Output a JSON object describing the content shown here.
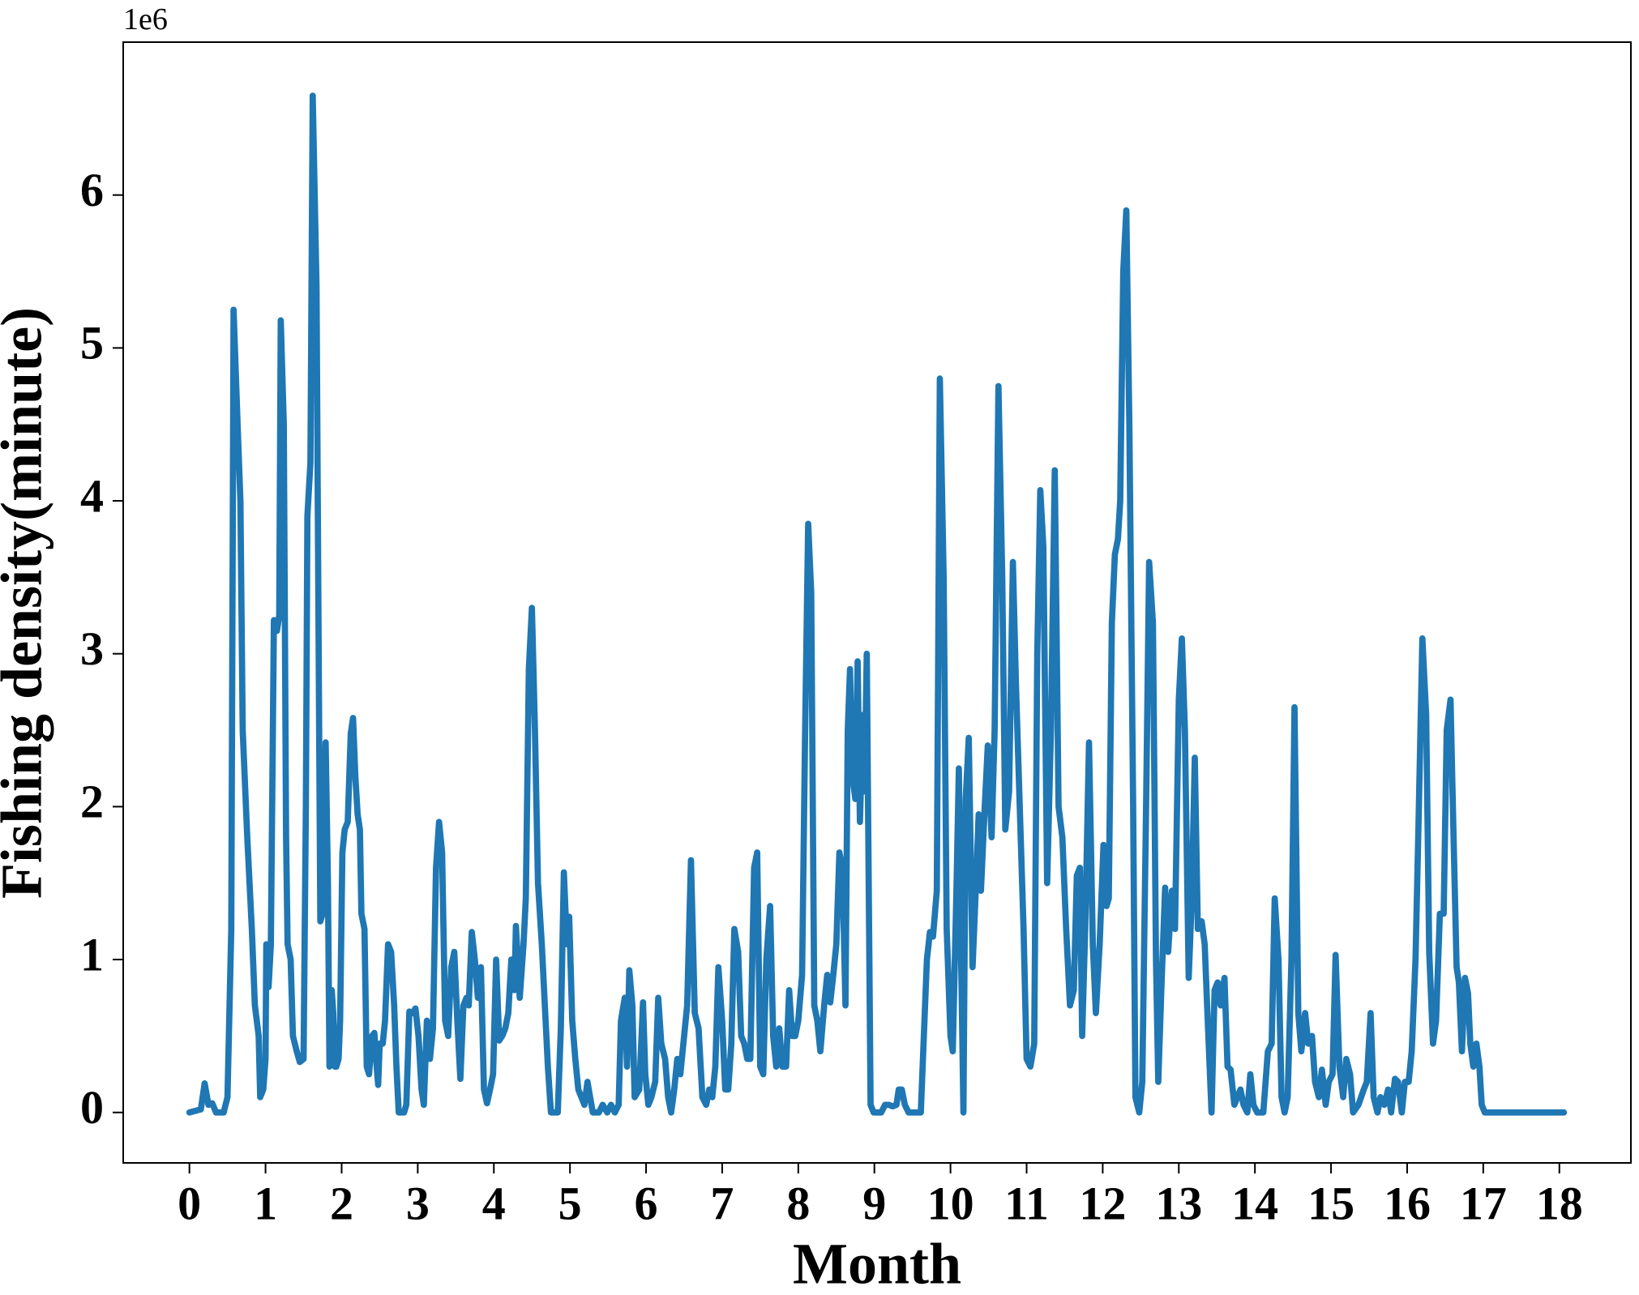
{
  "chart_data": {
    "type": "line",
    "xlabel": "Month",
    "ylabel": "Fishing density(minute)",
    "offset_text": "1e6",
    "xlim": [
      -0.87,
      18.94
    ],
    "ylim": [
      -0.33,
      7.0
    ],
    "xticks": [
      0,
      1,
      2,
      3,
      4,
      5,
      6,
      7,
      8,
      9,
      10,
      11,
      12,
      13,
      14,
      15,
      16,
      17,
      18
    ],
    "yticks": [
      0,
      1,
      2,
      3,
      4,
      5,
      6
    ],
    "line_width": 7.7,
    "x": [
      0,
      0.15,
      0.2,
      0.25,
      0.3,
      0.35,
      0.45,
      0.5,
      0.55,
      0.58,
      0.64,
      0.67,
      0.7,
      0.76,
      0.82,
      0.86,
      0.91,
      0.93,
      0.97,
      1.0,
      1.01,
      1.04,
      1.07,
      1.11,
      1.15,
      1.18,
      1.2,
      1.24,
      1.27,
      1.29,
      1.33,
      1.36,
      1.41,
      1.45,
      1.5,
      1.53,
      1.55,
      1.59,
      1.62,
      1.67,
      1.69,
      1.72,
      1.75,
      1.79,
      1.82,
      1.84,
      1.87,
      1.89,
      1.91,
      1.93,
      1.96,
      1.98,
      2.01,
      2.04,
      2.08,
      2.12,
      2.15,
      2.18,
      2.21,
      2.24,
      2.26,
      2.3,
      2.33,
      2.36,
      2.4,
      2.43,
      2.46,
      2.48,
      2.5,
      2.54,
      2.57,
      2.61,
      2.65,
      2.69,
      2.72,
      2.75,
      2.82,
      2.85,
      2.89,
      2.93,
      2.97,
      3.01,
      3.05,
      3.08,
      3.12,
      3.16,
      3.2,
      3.24,
      3.28,
      3.32,
      3.36,
      3.4,
      3.44,
      3.48,
      3.52,
      3.56,
      3.6,
      3.64,
      3.67,
      3.71,
      3.75,
      3.79,
      3.83,
      3.87,
      3.91,
      3.95,
      3.99,
      4.03,
      4.07,
      4.11,
      4.15,
      4.19,
      4.23,
      4.27,
      4.29,
      4.34,
      4.39,
      4.42,
      4.46,
      4.5,
      4.54,
      4.58,
      4.63,
      4.67,
      4.71,
      4.75,
      4.84,
      4.88,
      4.92,
      4.96,
      4.99,
      5.03,
      5.07,
      5.11,
      5.15,
      5.19,
      5.23,
      5.3,
      5.38,
      5.43,
      5.49,
      5.54,
      5.59,
      5.64,
      5.67,
      5.72,
      5.75,
      5.78,
      5.82,
      5.85,
      5.91,
      5.96,
      5.99,
      6.03,
      6.07,
      6.12,
      6.16,
      6.2,
      6.25,
      6.29,
      6.33,
      6.37,
      6.41,
      6.45,
      6.49,
      6.54,
      6.59,
      6.64,
      6.69,
      6.74,
      6.79,
      6.83,
      6.87,
      6.91,
      6.95,
      7.0,
      7.04,
      7.08,
      7.12,
      7.16,
      7.21,
      7.25,
      7.29,
      7.33,
      7.37,
      7.42,
      7.46,
      7.5,
      7.54,
      7.58,
      7.63,
      7.67,
      7.71,
      7.75,
      7.79,
      7.84,
      7.88,
      7.92,
      7.96,
      8.0,
      8.05,
      8.09,
      8.13,
      8.17,
      8.21,
      8.25,
      8.29,
      8.34,
      8.38,
      8.42,
      8.46,
      8.5,
      8.54,
      8.58,
      8.62,
      8.65,
      8.68,
      8.71,
      8.75,
      8.78,
      8.81,
      8.85,
      8.87,
      8.9,
      8.95,
      8.99,
      9.09,
      9.14,
      9.19,
      9.24,
      9.29,
      9.32,
      9.36,
      9.4,
      9.45,
      9.55,
      9.61,
      9.65,
      9.69,
      9.73,
      9.77,
      9.82,
      9.86,
      9.91,
      9.95,
      10.0,
      10.03,
      10.08,
      10.11,
      10.14,
      10.17,
      10.2,
      10.24,
      10.29,
      10.34,
      10.37,
      10.4,
      10.45,
      10.49,
      10.54,
      10.58,
      10.63,
      10.68,
      10.72,
      10.77,
      10.82,
      10.86,
      10.91,
      10.96,
      11.0,
      11.05,
      11.1,
      11.14,
      11.18,
      11.22,
      11.27,
      11.32,
      11.37,
      11.42,
      11.47,
      11.52,
      11.57,
      11.62,
      11.66,
      11.7,
      11.73,
      11.77,
      11.82,
      11.87,
      11.91,
      11.96,
      12.01,
      12.05,
      12.08,
      12.12,
      12.16,
      12.2,
      12.23,
      12.27,
      12.31,
      12.35,
      12.4,
      12.43,
      12.48,
      12.52,
      12.57,
      12.61,
      12.66,
      12.7,
      12.73,
      12.77,
      12.82,
      12.86,
      12.91,
      12.95,
      13.0,
      13.04,
      13.08,
      13.13,
      13.17,
      13.21,
      13.25,
      13.3,
      13.34,
      13.38,
      13.43,
      13.47,
      13.51,
      13.55,
      13.6,
      13.64,
      13.68,
      13.73,
      13.77,
      13.81,
      13.85,
      13.9,
      13.94,
      13.98,
      14.03,
      14.11,
      14.17,
      14.22,
      14.26,
      14.31,
      14.35,
      14.39,
      14.43,
      14.48,
      14.52,
      14.57,
      14.61,
      14.66,
      14.7,
      14.75,
      14.79,
      14.84,
      14.88,
      14.93,
      14.97,
      15.02,
      15.06,
      15.11,
      15.16,
      15.2,
      15.25,
      15.29,
      15.36,
      15.43,
      15.47,
      15.52,
      15.56,
      15.61,
      15.65,
      15.7,
      15.75,
      15.79,
      15.84,
      15.88,
      15.93,
      15.97,
      16.02,
      16.06,
      16.11,
      16.15,
      16.2,
      16.25,
      16.29,
      16.34,
      16.38,
      16.43,
      16.48,
      16.52,
      16.57,
      16.61,
      16.65,
      16.68,
      16.72,
      16.76,
      16.8,
      16.83,
      16.87,
      16.91,
      16.95,
      16.98,
      17.02,
      17.5,
      18.06
    ],
    "series": [
      {
        "color": "#1f77b4",
        "values": [
          0,
          0.02,
          0.19,
          0.05,
          0.06,
          0,
          0,
          0.1,
          1.2,
          5.25,
          4.4,
          4.0,
          2.5,
          1.8,
          1.2,
          0.7,
          0.5,
          0.1,
          0.15,
          0.35,
          1.1,
          0.82,
          1.1,
          3.22,
          3.15,
          3.25,
          5.18,
          4.5,
          1.8,
          1.1,
          1.0,
          0.5,
          0.4,
          0.33,
          0.35,
          2.0,
          3.9,
          4.25,
          6.65,
          5.4,
          3.7,
          1.25,
          1.3,
          2.42,
          1.5,
          0.3,
          0.8,
          0.65,
          0.3,
          0.3,
          0.35,
          0.6,
          1.7,
          1.85,
          1.9,
          2.48,
          2.58,
          2.2,
          1.95,
          1.85,
          1.3,
          1.2,
          0.3,
          0.25,
          0.5,
          0.52,
          0.3,
          0.18,
          0.45,
          0.45,
          0.6,
          1.1,
          1.05,
          0.7,
          0.3,
          0,
          0,
          0.05,
          0.66,
          0.65,
          0.68,
          0.5,
          0.15,
          0.05,
          0.6,
          0.35,
          0.55,
          1.6,
          1.9,
          1.7,
          0.6,
          0.5,
          0.95,
          1.05,
          0.6,
          0.22,
          0.7,
          0.75,
          0.7,
          1.18,
          1.0,
          0.75,
          0.95,
          0.15,
          0.06,
          0.15,
          0.25,
          1.0,
          0.47,
          0.5,
          0.55,
          0.65,
          1.0,
          0.8,
          1.22,
          0.75,
          1.1,
          1.4,
          2.9,
          3.3,
          2.5,
          1.5,
          1.1,
          0.7,
          0.3,
          0,
          0,
          0.55,
          1.57,
          1.1,
          1.28,
          0.6,
          0.35,
          0.15,
          0.1,
          0.05,
          0.2,
          0,
          0,
          0.05,
          0,
          0.05,
          0,
          0.05,
          0.6,
          0.75,
          0.3,
          0.93,
          0.7,
          0.1,
          0.15,
          0.72,
          0.25,
          0.05,
          0.1,
          0.2,
          0.75,
          0.45,
          0.35,
          0.1,
          0,
          0.15,
          0.35,
          0.25,
          0.45,
          0.7,
          1.65,
          0.65,
          0.55,
          0.1,
          0.05,
          0.15,
          0.1,
          0.3,
          0.95,
          0.6,
          0.15,
          0.15,
          0.45,
          1.2,
          1.05,
          0.5,
          0.45,
          0.35,
          0.35,
          1.6,
          1.7,
          0.3,
          0.25,
          1.0,
          1.35,
          0.5,
          0.3,
          0.55,
          0.3,
          0.3,
          0.8,
          0.5,
          0.5,
          0.6,
          0.9,
          2.5,
          3.85,
          3.4,
          0.7,
          0.6,
          0.4,
          0.7,
          0.9,
          0.72,
          0.9,
          1.1,
          1.7,
          1.6,
          0.7,
          2.5,
          2.9,
          2.2,
          2.05,
          2.95,
          1.9,
          2.6,
          2.1,
          3.0,
          0.05,
          0,
          0,
          0.05,
          0.05,
          0.04,
          0.05,
          0.15,
          0.15,
          0.05,
          0,
          0,
          0,
          0.5,
          1.0,
          1.18,
          1.15,
          1.45,
          4.8,
          3.5,
          1.2,
          0.5,
          0.4,
          1.5,
          2.25,
          1.0,
          0,
          2.05,
          2.45,
          0.95,
          1.55,
          1.95,
          1.45,
          2.0,
          2.4,
          1.8,
          2.5,
          4.75,
          3.5,
          1.85,
          2.1,
          3.6,
          2.8,
          2.0,
          1.2,
          0.35,
          0.3,
          0.45,
          3.0,
          4.07,
          3.7,
          1.5,
          2.5,
          4.2,
          2.0,
          1.8,
          1.2,
          0.7,
          0.8,
          1.55,
          1.6,
          0.5,
          1.2,
          2.42,
          1.1,
          0.65,
          1.1,
          1.75,
          1.35,
          1.4,
          3.2,
          3.65,
          3.75,
          4.0,
          5.5,
          5.9,
          4.5,
          2.0,
          0.1,
          0,
          0.2,
          2.0,
          3.6,
          3.2,
          1.0,
          0.2,
          0.8,
          1.47,
          1.05,
          1.45,
          1.2,
          2.7,
          3.1,
          2.5,
          0.88,
          1.4,
          2.32,
          1.2,
          1.25,
          1.1,
          0.6,
          0,
          0.8,
          0.85,
          0.7,
          0.88,
          0.3,
          0.28,
          0.05,
          0.1,
          0.15,
          0.05,
          0,
          0.25,
          0.05,
          0,
          0,
          0.4,
          0.45,
          1.4,
          1.0,
          0.1,
          0,
          0.1,
          1.0,
          2.65,
          0.65,
          0.4,
          0.65,
          0.45,
          0.5,
          0.2,
          0.1,
          0.28,
          0.05,
          0.2,
          0.25,
          1.03,
          0.3,
          0.1,
          0.35,
          0.25,
          0,
          0.05,
          0.15,
          0.2,
          0.65,
          0.1,
          0,
          0.1,
          0.05,
          0.15,
          0,
          0.22,
          0.2,
          0,
          0.2,
          0.2,
          0.4,
          1.0,
          1.9,
          3.1,
          2.6,
          1.05,
          0.45,
          0.6,
          1.3,
          1.3,
          2.5,
          2.7,
          1.8,
          0.95,
          0.85,
          0.4,
          0.88,
          0.78,
          0.45,
          0.3,
          0.45,
          0.3,
          0.05,
          0,
          0,
          0
        ]
      }
    ]
  }
}
